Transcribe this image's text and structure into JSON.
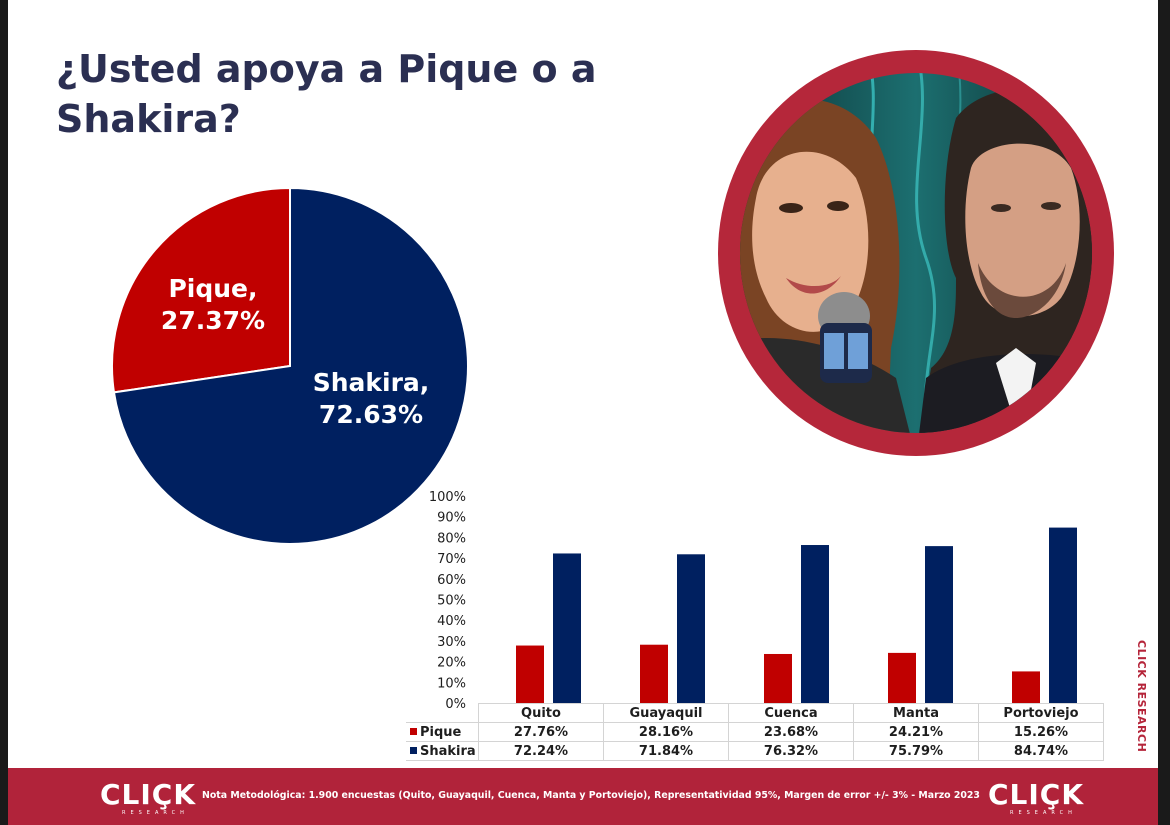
{
  "title": "¿Usted apoya a Pique o a Shakira?",
  "colors": {
    "pique": "#c00000",
    "shakira": "#002060",
    "accent": "#b1233a",
    "title": "#2b2f52"
  },
  "chart_data": [
    {
      "type": "pie",
      "slices": [
        {
          "name": "Pique",
          "value": 27.37,
          "label_line1": "Pique,",
          "label_line2": "27.37%"
        },
        {
          "name": "Shakira",
          "value": 72.63,
          "label_line1": "Shakira,",
          "label_line2": "72.63%"
        }
      ]
    },
    {
      "type": "bar",
      "categories": [
        "Quito",
        "Guayaquil",
        "Cuenca",
        "Manta",
        "Portoviejo"
      ],
      "series": [
        {
          "name": "Pique",
          "values": [
            27.76,
            28.16,
            23.68,
            24.21,
            15.26
          ],
          "labels": [
            "27.76%",
            "28.16%",
            "23.68%",
            "24.21%",
            "15.26%"
          ]
        },
        {
          "name": "Shakira",
          "values": [
            72.24,
            71.84,
            76.32,
            75.79,
            84.74
          ],
          "labels": [
            "72.24%",
            "71.84%",
            "76.32%",
            "75.79%",
            "84.74%"
          ]
        }
      ],
      "ylim": [
        0,
        100
      ],
      "yticks": [
        "0%",
        "10%",
        "20%",
        "30%",
        "40%",
        "50%",
        "60%",
        "70%",
        "80%",
        "90%",
        "100%"
      ],
      "legend": "data-table"
    }
  ],
  "brand": {
    "side": "CLICK RESEARCH",
    "logo": "CLIÇK",
    "logo_sub": "RESEARCH"
  },
  "footer": {
    "note": "Nota Metodológica: 1.900 encuestas (Quito, Guayaquil, Cuenca, Manta y Portoviejo), Representatividad 95%, Margen de error +/- 3% - Marzo 2023"
  }
}
